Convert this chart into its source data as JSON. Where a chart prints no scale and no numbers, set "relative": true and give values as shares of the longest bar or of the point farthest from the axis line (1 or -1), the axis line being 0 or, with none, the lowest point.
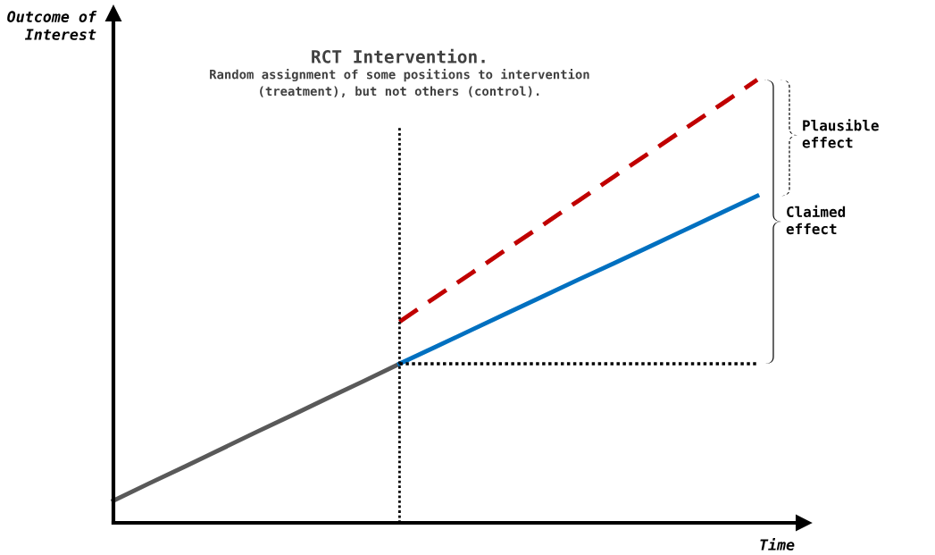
{
  "chart_data": {
    "type": "line",
    "relative": true,
    "xlabel": "Time",
    "ylabel": "Outcome of\nInterest",
    "marker": "none",
    "categories": [
      null,
      null,
      null,
      null,
      null,
      null,
      null,
      null,
      null,
      null,
      null,
      null,
      null,
      null,
      null,
      null,
      null,
      null,
      null
    ],
    "series": [
      {
        "color": "#595959",
        "values": [
          0.05,
          0.089,
          0.127,
          0.166,
          0.205,
          0.243,
          0.282,
          0.32,
          0.359,
          null,
          null,
          null,
          null,
          null,
          null,
          null,
          null,
          null,
          null
        ]
      },
      {
        "color": "#0070c0",
        "values": [
          null,
          null,
          null,
          null,
          null,
          null,
          null,
          null,
          0.359,
          0.397,
          0.435,
          0.473,
          0.511,
          0.549,
          0.586,
          0.624,
          0.662,
          0.7,
          0.738
        ]
      },
      {
        "color": "#c00000",
        "values": [
          null,
          null,
          null,
          null,
          null,
          null,
          null,
          null,
          0.454,
          0.509,
          0.563,
          0.618,
          0.672,
          0.727,
          0.782,
          0.836,
          0.891,
          0.945,
          1.0
        ],
        "line_style": "dashed"
      },
      {
        "color": "#000000",
        "values": [
          null,
          null,
          null,
          null,
          null,
          null,
          null,
          null,
          0.359,
          0.359,
          0.359,
          0.359,
          0.359,
          0.359,
          0.359,
          0.359,
          0.359,
          0.359,
          0.359
        ],
        "line_style": "dotted"
      }
    ],
    "annotations": [
      "RCT Intervention.",
      "Random assignment of some positions to intervention\n(treatment), but not others (control).",
      "Plausible effect",
      "Claimed effect"
    ]
  }
}
